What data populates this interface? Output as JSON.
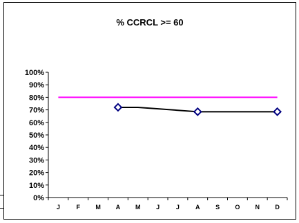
{
  "chart_data": {
    "type": "line",
    "title": "% CCRCL >= 60",
    "xlabel": "",
    "ylabel": "",
    "categories": [
      "J",
      "F",
      "M",
      "A",
      "M",
      "J",
      "J",
      "A",
      "S",
      "O",
      "N",
      "D"
    ],
    "y_ticks": [
      "0%",
      "10%",
      "20%",
      "30%",
      "40%",
      "50%",
      "60%",
      "70%",
      "80%",
      "90%",
      "100%"
    ],
    "ylim": [
      0,
      100
    ],
    "grid": false,
    "legend": "none",
    "series": [
      {
        "values": [
          null,
          null,
          null,
          72,
          72,
          null,
          null,
          68.5,
          null,
          null,
          null,
          68.5
        ],
        "markers": [
          3,
          7,
          11
        ],
        "color": "#000000",
        "marker_color": "#000080"
      },
      {
        "values": [
          80,
          80,
          80,
          80,
          80,
          80,
          80,
          80,
          80,
          80,
          80,
          80
        ],
        "color": "#ff00ff",
        "markers": []
      }
    ]
  }
}
